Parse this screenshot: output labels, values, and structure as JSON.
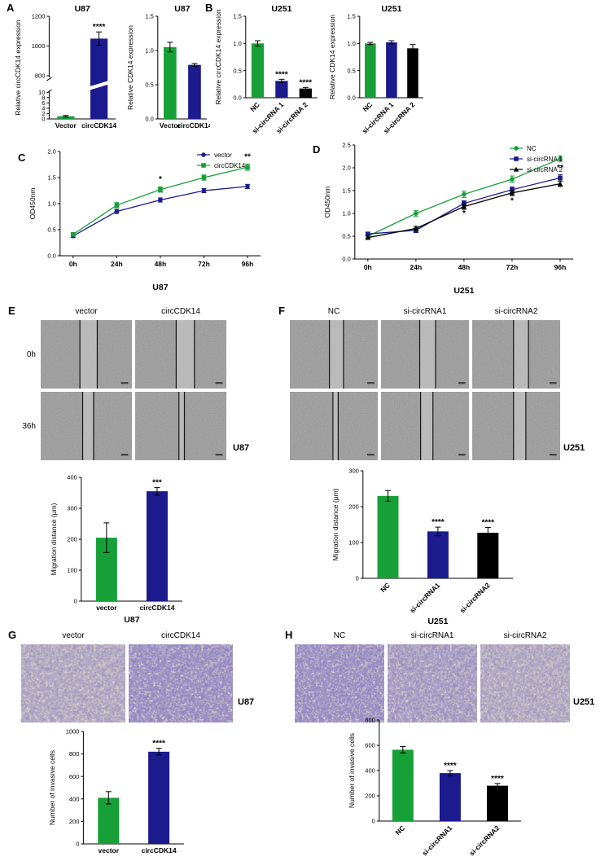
{
  "colors": {
    "green": "#18a038",
    "navy": "#1b1b8e",
    "black": "#000000",
    "wound_base": "#a8a8a8",
    "transwell_base": "#d9d4c5"
  },
  "panels": {
    "A": {
      "label": "A"
    },
    "B": {
      "label": "B"
    },
    "C": {
      "label": "C"
    },
    "D": {
      "label": "D"
    },
    "E": {
      "label": "E",
      "col_headers": [
        "vector",
        "circCDK14"
      ],
      "row_labels": [
        "0h",
        "36h"
      ],
      "cell_line": "U87",
      "images": [
        {
          "time": "0h",
          "condition": "vector",
          "gap": [
            43,
            62
          ]
        },
        {
          "time": "0h",
          "condition": "circCDK14",
          "gap": [
            45,
            65
          ]
        },
        {
          "time": "36h",
          "condition": "vector",
          "gap": [
            46,
            58
          ]
        },
        {
          "time": "36h",
          "condition": "circCDK14",
          "gap": [
            48,
            54
          ]
        }
      ]
    },
    "F": {
      "label": "F",
      "col_headers": [
        "NC",
        "si-circRNA1",
        "si-circRNA2"
      ],
      "cell_line": "U251",
      "images": [
        {
          "time": "0h",
          "condition": "NC",
          "gap": [
            45,
            61
          ]
        },
        {
          "time": "0h",
          "condition": "si-circRNA1",
          "gap": [
            44,
            62
          ]
        },
        {
          "time": "0h",
          "condition": "si-circRNA2",
          "gap": [
            47,
            64
          ]
        },
        {
          "time": "36h",
          "condition": "NC",
          "gap": [
            49,
            55
          ]
        },
        {
          "time": "36h",
          "condition": "si-circRNA1",
          "gap": [
            45,
            59
          ]
        },
        {
          "time": "36h",
          "condition": "si-circRNA2",
          "gap": [
            47,
            61
          ]
        }
      ]
    },
    "G": {
      "label": "G",
      "col_headers": [
        "vector",
        "circCDK14"
      ],
      "cell_line": "U87",
      "images": [
        {
          "condition": "vector",
          "density": 0.55
        },
        {
          "condition": "circCDK14",
          "density": 0.95
        }
      ]
    },
    "H": {
      "label": "H",
      "col_headers": [
        "NC",
        "si-circRNA1",
        "si-circRNA2"
      ],
      "cell_line": "U251",
      "images": [
        {
          "condition": "NC",
          "density": 0.95
        },
        {
          "condition": "si-circRNA1",
          "density": 0.72
        },
        {
          "condition": "si-circRNA2",
          "density": 0.55
        }
      ]
    }
  },
  "chart_data": [
    {
      "id": "A1",
      "type": "bar",
      "title": "U87",
      "ylabel": "Relative circCDK14 expression",
      "categories": [
        "Vector",
        "circCDK14"
      ],
      "values": [
        1,
        1050
      ],
      "errors": [
        0.3,
        45
      ],
      "colors": [
        "green",
        "navy"
      ],
      "significance": [
        "",
        "****"
      ],
      "axis_break": {
        "lower_range": [
          0,
          10
        ],
        "lower_ticks": [
          0,
          2,
          4,
          6,
          8,
          10
        ],
        "upper_range": [
          800,
          1200
        ],
        "upper_ticks": [
          800,
          1000,
          1200
        ]
      },
      "ydec": 0
    },
    {
      "id": "A2",
      "type": "bar",
      "title": "U87",
      "ylabel": "Relative CDK14 expression",
      "categories": [
        "Vector",
        "circCDK14"
      ],
      "values": [
        1.05,
        0.79
      ],
      "errors": [
        0.07,
        0.02
      ],
      "colors": [
        "green",
        "navy"
      ],
      "significance": [
        "",
        ""
      ],
      "ylim": [
        0,
        1.5
      ],
      "yticks": [
        0,
        0.5,
        1.0,
        1.5
      ],
      "ydec": 1
    },
    {
      "id": "B1",
      "type": "bar",
      "title": "U251",
      "ylabel": "Relative circCDK14 expression",
      "categories": [
        "NC",
        "si-circRNA 1",
        "si-circRNA 2"
      ],
      "values": [
        1.0,
        0.31,
        0.17
      ],
      "errors": [
        0.05,
        0.03,
        0.02
      ],
      "colors": [
        "green",
        "navy",
        "black"
      ],
      "significance": [
        "",
        "****",
        "****"
      ],
      "ylim": [
        0,
        1.5
      ],
      "yticks": [
        0,
        0.5,
        1.0,
        1.5
      ],
      "ydec": 1,
      "rotate_labels": true
    },
    {
      "id": "B2",
      "type": "bar",
      "title": "U251",
      "ylabel": "Relative CDK14 expression",
      "categories": [
        "NC",
        "si-circRNA 1",
        "si-circRNA 2"
      ],
      "values": [
        1.0,
        1.02,
        0.91
      ],
      "errors": [
        0.02,
        0.03,
        0.07
      ],
      "colors": [
        "green",
        "navy",
        "black"
      ],
      "significance": [
        "",
        "",
        ""
      ],
      "ylim": [
        0,
        1.5
      ],
      "yticks": [
        0,
        0.5,
        1.0,
        1.5
      ],
      "ydec": 1,
      "rotate_labels": true
    },
    {
      "id": "C",
      "type": "line",
      "xlabel": "U87",
      "ylabel": "OD450nm",
      "x": [
        "0h",
        "24h",
        "48h",
        "72h",
        "96h"
      ],
      "ylim": [
        0,
        2.0
      ],
      "yticks": [
        0,
        0.5,
        1.0,
        1.5,
        2.0
      ],
      "ydec": 1,
      "legend": "top-right",
      "series": [
        {
          "name": "vector",
          "color": "navy",
          "marker": "circle",
          "values": [
            0.38,
            0.85,
            1.07,
            1.25,
            1.33
          ],
          "errors": [
            0.03,
            0.04,
            0.04,
            0.04,
            0.04
          ]
        },
        {
          "name": "circCDK14",
          "color": "green",
          "marker": "square",
          "values": [
            0.41,
            0.97,
            1.27,
            1.5,
            1.7
          ],
          "errors": [
            0.03,
            0.05,
            0.05,
            0.05,
            0.06
          ]
        }
      ],
      "annotations": [
        {
          "x": "48h",
          "y": 1.42,
          "text": "*"
        },
        {
          "x": "72h",
          "y": 1.65,
          "text": "*"
        },
        {
          "x": "96h",
          "y": 1.85,
          "text": "**"
        }
      ]
    },
    {
      "id": "D",
      "type": "line",
      "xlabel": "U251",
      "ylabel": "OD450nm",
      "x": [
        "0h",
        "24h",
        "48h",
        "72h",
        "96h"
      ],
      "ylim": [
        0,
        2.5
      ],
      "yticks": [
        0,
        0.5,
        1.0,
        1.5,
        2.0,
        2.5
      ],
      "ydec": 1,
      "legend": "top-right",
      "series": [
        {
          "name": "NC",
          "color": "green",
          "marker": "circle",
          "values": [
            0.5,
            1.0,
            1.42,
            1.75,
            2.2
          ],
          "errors": [
            0.04,
            0.06,
            0.07,
            0.07,
            0.06
          ]
        },
        {
          "name": "si-circRNA 1",
          "color": "navy",
          "marker": "square",
          "values": [
            0.55,
            0.63,
            1.22,
            1.52,
            1.78
          ],
          "errors": [
            0.04,
            0.05,
            0.06,
            0.06,
            0.07
          ]
        },
        {
          "name": "si-circRNA 2",
          "color": "black",
          "marker": "triangle",
          "values": [
            0.47,
            0.67,
            1.15,
            1.45,
            1.65
          ],
          "errors": [
            0.04,
            0.05,
            0.06,
            0.06,
            0.06
          ]
        }
      ],
      "annotations": [
        {
          "x": "48h",
          "y": 0.95,
          "text": "*"
        },
        {
          "x": "72h",
          "y": 1.22,
          "text": "*"
        },
        {
          "x": "96h",
          "y": 1.95,
          "text": "**"
        }
      ]
    },
    {
      "id": "E",
      "type": "bar",
      "xlabel": "U87",
      "ylabel": "Migration distance (μm)",
      "categories": [
        "vector",
        "circCDK14"
      ],
      "values": [
        205,
        355
      ],
      "errors": [
        48,
        12
      ],
      "colors": [
        "green",
        "navy"
      ],
      "significance": [
        "",
        "***"
      ],
      "ylim": [
        0,
        400
      ],
      "yticks": [
        0,
        100,
        200,
        300,
        400
      ],
      "ydec": 0
    },
    {
      "id": "F",
      "type": "bar",
      "xlabel": "U251",
      "ylabel": "Migration distance (μm)",
      "categories": [
        "NC",
        "si-circRNA1",
        "si-circRNA2"
      ],
      "values": [
        230,
        131,
        127
      ],
      "errors": [
        15,
        12,
        15
      ],
      "colors": [
        "green",
        "navy",
        "black"
      ],
      "significance": [
        "",
        "****",
        "****"
      ],
      "ylim": [
        0,
        300
      ],
      "yticks": [
        0,
        100,
        200,
        300
      ],
      "ydec": 0,
      "rotate_labels": true
    },
    {
      "id": "G",
      "type": "bar",
      "ylabel": "Number of invasive cells",
      "categories": [
        "vector",
        "circCDK14"
      ],
      "values": [
        410,
        820
      ],
      "errors": [
        55,
        30
      ],
      "colors": [
        "green",
        "navy"
      ],
      "significance": [
        "",
        "****"
      ],
      "ylim": [
        0,
        1000
      ],
      "yticks": [
        0,
        200,
        400,
        600,
        800,
        1000
      ],
      "ydec": 0
    },
    {
      "id": "H",
      "type": "bar",
      "ylabel": "Number of invasive cells",
      "categories": [
        "NC",
        "si-circRNA1",
        "si-circRNA2"
      ],
      "values": [
        565,
        380,
        280
      ],
      "errors": [
        25,
        20,
        18
      ],
      "colors": [
        "green",
        "navy",
        "black"
      ],
      "significance": [
        "",
        "****",
        "****"
      ],
      "ylim": [
        0,
        800
      ],
      "yticks": [
        0,
        200,
        400,
        600,
        800
      ],
      "ydec": 0,
      "rotate_labels": true
    }
  ]
}
